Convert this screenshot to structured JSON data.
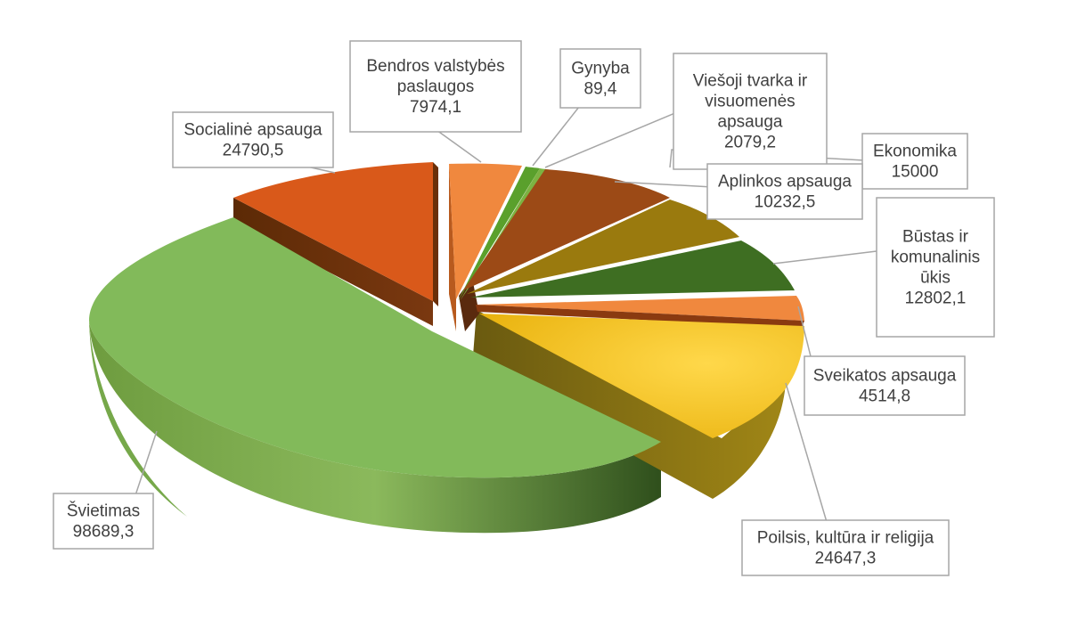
{
  "chart_data": {
    "type": "pie",
    "style": "3d-exploded",
    "title": "",
    "slices": [
      {
        "label": "Bendros valstybės paslaugos",
        "value": 7974.1,
        "display": "7974,1",
        "color": "#F0883E"
      },
      {
        "label": "Gynyba",
        "value": 89.4,
        "display": "89,4",
        "color": "#5AA02C"
      },
      {
        "label": "Viešoji tvarka ir visuomenės apsauga",
        "value": 2079.2,
        "display": "2079,2",
        "color": "#7CB342"
      },
      {
        "label": "Ekonomika",
        "value": 15000,
        "display": "15000",
        "color": "#9C4A16"
      },
      {
        "label": "Aplinkos apsauga",
        "value": 10232.5,
        "display": "10232,5",
        "color": "#9A7A0E"
      },
      {
        "label": "Būstas ir komunalinis ūkis",
        "value": 12802.1,
        "display": "12802,1",
        "color": "#3E6E22"
      },
      {
        "label": "Sveikatos apsauga",
        "value": 4514.8,
        "display": "4514,8",
        "color": "#F0883E"
      },
      {
        "label": "Poilsis, kultūra ir religija",
        "value": 24647.3,
        "display": "24647,3",
        "color": "#F5C42A"
      },
      {
        "label": "Švietimas",
        "value": 98689.3,
        "display": "98689,3",
        "color": "#7CB85A"
      },
      {
        "label": "Socialinė apsauga",
        "value": 24790.5,
        "display": "24790,5",
        "color": "#D9591A"
      }
    ],
    "labels": [
      {
        "lines": [
          "Bendros valstybės",
          "paslaugos",
          "7974,1"
        ]
      },
      {
        "lines": [
          "Gynyba",
          "89,4"
        ]
      },
      {
        "lines": [
          "Viešoji tvarka ir",
          "visuomenės",
          "apsauga",
          "2079,2"
        ]
      },
      {
        "lines": [
          "Ekonomika",
          "15000"
        ]
      },
      {
        "lines": [
          "Aplinkos apsauga",
          "10232,5"
        ]
      },
      {
        "lines": [
          "Būstas ir",
          "komunalinis",
          "ūkis",
          "12802,1"
        ]
      },
      {
        "lines": [
          "Sveikatos apsauga",
          "4514,8"
        ]
      },
      {
        "lines": [
          "Poilsis, kultūra ir religija",
          "24647,3"
        ]
      },
      {
        "lines": [
          "Švietimas",
          "98689,3"
        ]
      },
      {
        "lines": [
          "Socialinė apsauga",
          "24790,5"
        ]
      }
    ]
  }
}
